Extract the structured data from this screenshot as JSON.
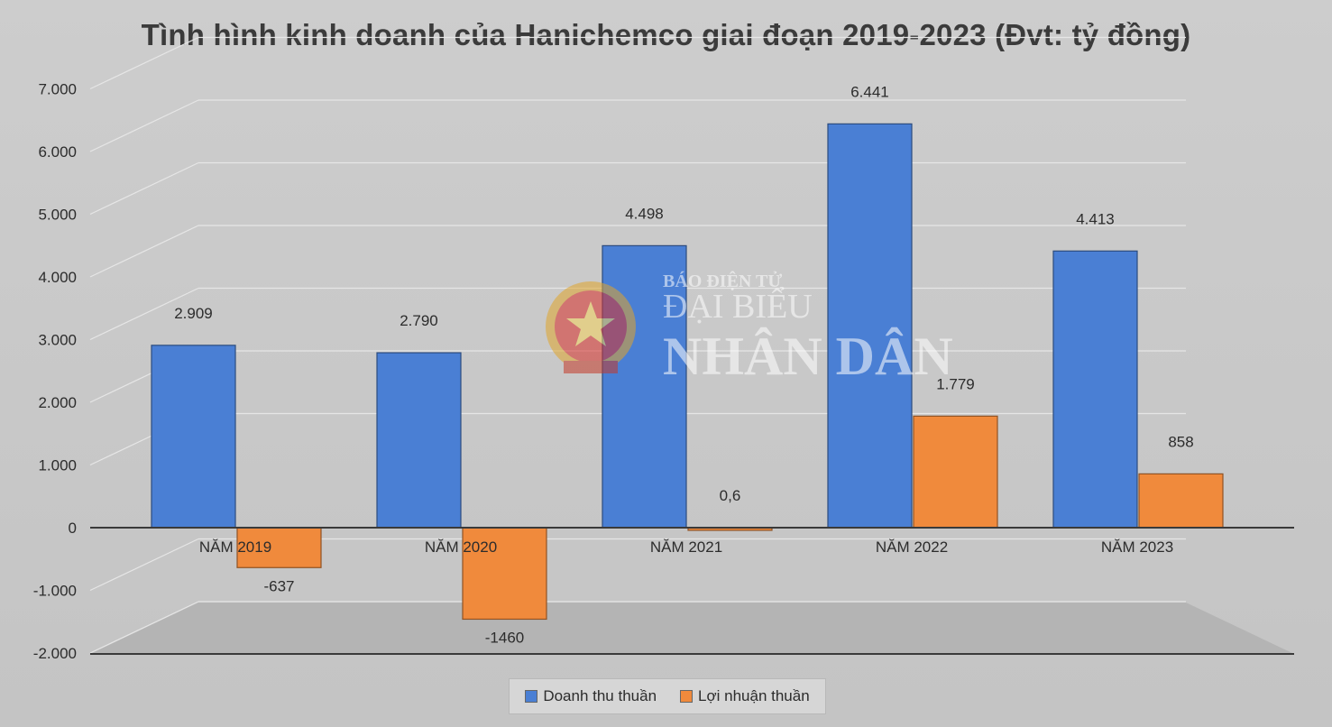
{
  "chart_data": {
    "type": "bar",
    "title": "Tình hình kinh doanh của Hanichemco giai đoạn 2019-2023 (Đvt: tỷ đồng)",
    "categories": [
      "NĂM 2019",
      "NĂM 2020",
      "NĂM 2021",
      "NĂM 2022",
      "NĂM 2023"
    ],
    "series": [
      {
        "name": "Doanh thu thuần",
        "values": [
          2909,
          2790,
          4498,
          6441,
          4413
        ],
        "labels": [
          "2.909",
          "2.790",
          "4.498",
          "6.441",
          "4.413"
        ],
        "color": "#4a7fd4"
      },
      {
        "name": "Lợi nhuận thuần",
        "values": [
          -637,
          -1460,
          0.6,
          1779,
          858
        ],
        "labels": [
          "-637",
          "-1460",
          "0,6",
          "1.779",
          "858"
        ],
        "color": "#f08a3c"
      }
    ],
    "yticks": [
      "7.000",
      "6.000",
      "5.000",
      "4.000",
      "3.000",
      "2.000",
      "1.000",
      "0",
      "-1.000",
      "-2.000"
    ],
    "ylim": [
      -2000,
      7000
    ],
    "grid": true,
    "legend": "bottom"
  },
  "watermark": {
    "line1": "BÁO ĐIỆN TỬ",
    "line2": "ĐẠI BIỂU",
    "line3": "NHÂN DÂN"
  },
  "legend": {
    "revenue": "Doanh thu thuần",
    "profit": "Lợi nhuận thuần"
  }
}
